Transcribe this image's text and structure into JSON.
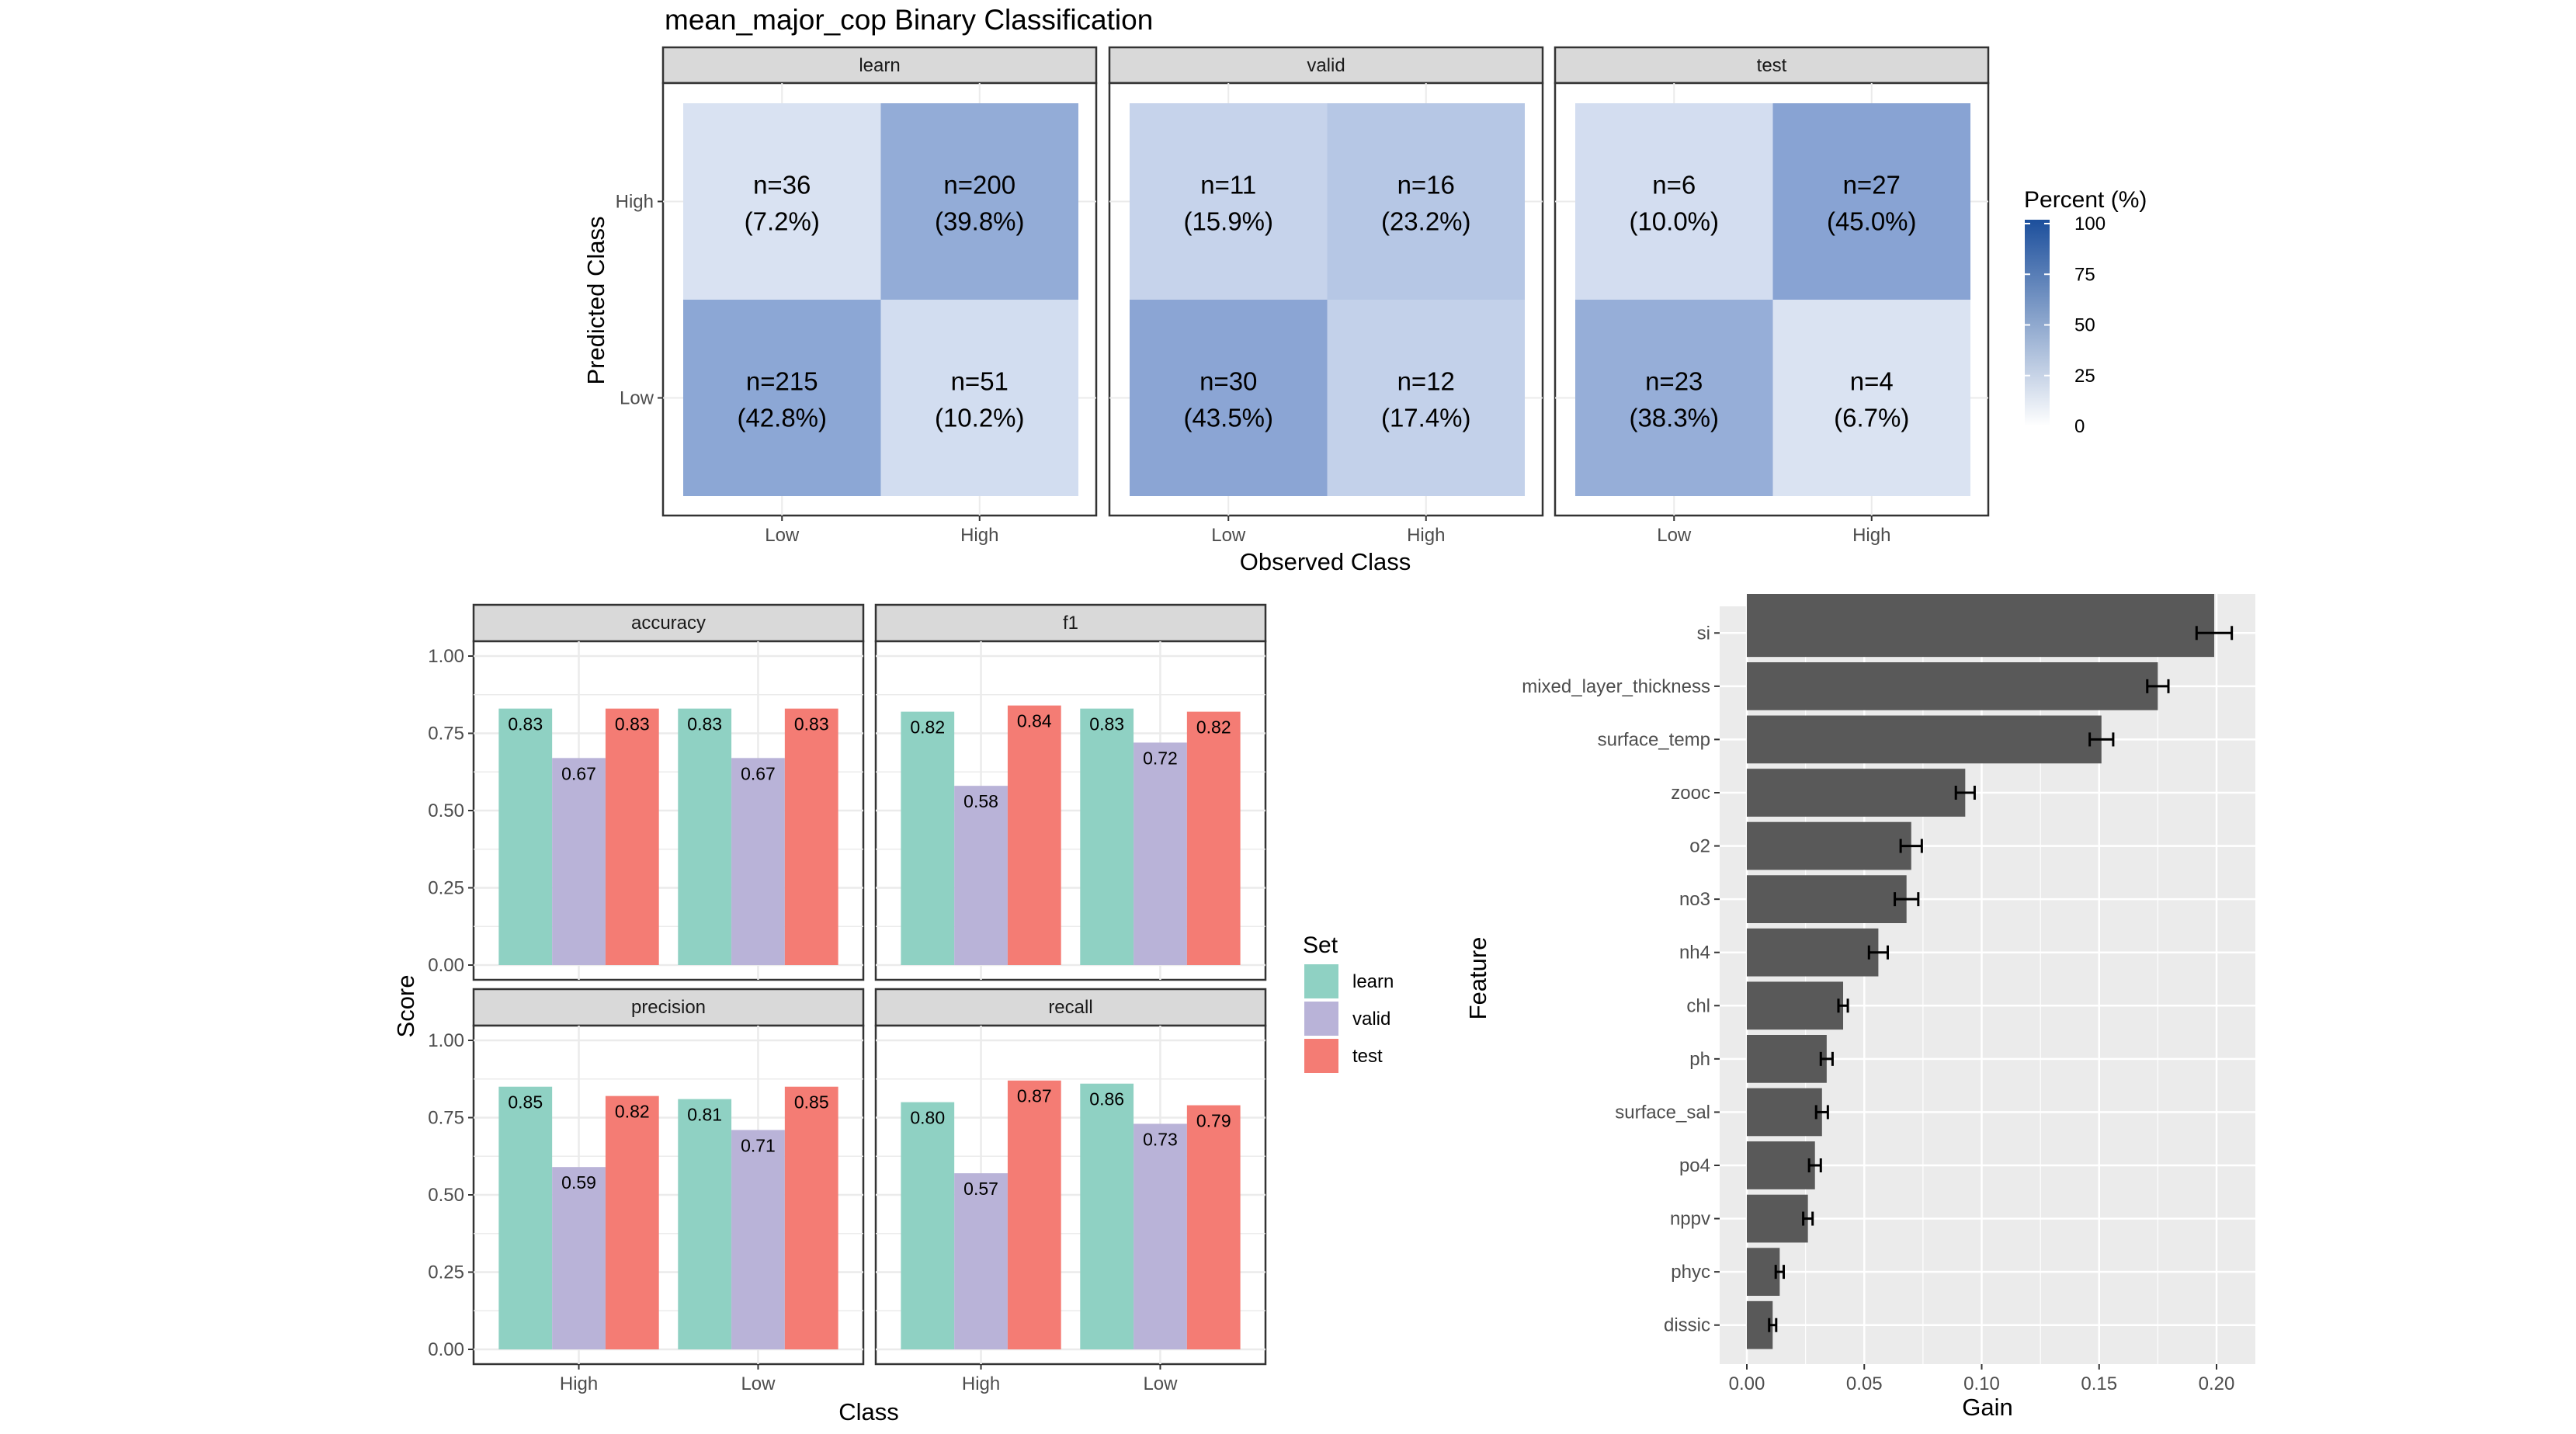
{
  "chart_data": [
    {
      "type": "heatmap",
      "title": "mean_major_cop Binary Classification",
      "xlabel": "Observed Class",
      "ylabel": "Predicted Class",
      "x_categories": [
        "Low",
        "High"
      ],
      "y_categories": [
        "Low",
        "High"
      ],
      "facets": [
        {
          "name": "learn",
          "cells": [
            {
              "observed": "Low",
              "predicted": "High",
              "n": 36,
              "percent": 7.2,
              "label_n": "n=36",
              "label_pct": "(7.2%)"
            },
            {
              "observed": "High",
              "predicted": "High",
              "n": 200,
              "percent": 39.8,
              "label_n": "n=200",
              "label_pct": "(39.8%)"
            },
            {
              "observed": "Low",
              "predicted": "Low",
              "n": 215,
              "percent": 42.8,
              "label_n": "n=215",
              "label_pct": "(42.8%)"
            },
            {
              "observed": "High",
              "predicted": "Low",
              "n": 51,
              "percent": 10.2,
              "label_n": "n=51",
              "label_pct": "(10.2%)"
            }
          ]
        },
        {
          "name": "valid",
          "cells": [
            {
              "observed": "Low",
              "predicted": "High",
              "n": 11,
              "percent": 15.9,
              "label_n": "n=11",
              "label_pct": "(15.9%)"
            },
            {
              "observed": "High",
              "predicted": "High",
              "n": 16,
              "percent": 23.2,
              "label_n": "n=16",
              "label_pct": "(23.2%)"
            },
            {
              "observed": "Low",
              "predicted": "Low",
              "n": 30,
              "percent": 43.5,
              "label_n": "n=30",
              "label_pct": "(43.5%)"
            },
            {
              "observed": "High",
              "predicted": "Low",
              "n": 12,
              "percent": 17.4,
              "label_n": "n=12",
              "label_pct": "(17.4%)"
            }
          ]
        },
        {
          "name": "test",
          "cells": [
            {
              "observed": "Low",
              "predicted": "High",
              "n": 6,
              "percent": 10.0,
              "label_n": "n=6",
              "label_pct": "(10.0%)"
            },
            {
              "observed": "High",
              "predicted": "High",
              "n": 27,
              "percent": 45.0,
              "label_n": "n=27",
              "label_pct": "(45.0%)"
            },
            {
              "observed": "Low",
              "predicted": "Low",
              "n": 23,
              "percent": 38.3,
              "label_n": "n=23",
              "label_pct": "(38.3%)"
            },
            {
              "observed": "High",
              "predicted": "Low",
              "n": 4,
              "percent": 6.7,
              "label_n": "n=4",
              "label_pct": "(6.7%)"
            }
          ]
        }
      ],
      "legend": {
        "title": "Percent (%)",
        "range": [
          0,
          100
        ],
        "ticks": [
          "0",
          "25",
          "50",
          "75",
          "100"
        ],
        "tick_values": [
          0,
          25,
          50,
          75,
          100
        ],
        "color_low": "#ffffff",
        "color_high": "#1c4f9c",
        "placement": "right"
      }
    },
    {
      "type": "bar",
      "xlabel": "Class",
      "ylabel": "Score",
      "categories": [
        "High",
        "Low"
      ],
      "ylim": [
        0,
        1
      ],
      "yticks": [
        "0.00",
        "0.25",
        "0.50",
        "0.75",
        "1.00"
      ],
      "ytick_values": [
        0,
        0.25,
        0.5,
        0.75,
        1.0
      ],
      "grid": true,
      "legend": {
        "title": "Set",
        "placement": "right",
        "entries": [
          {
            "name": "learn",
            "color": "#8fd1c3"
          },
          {
            "name": "valid",
            "color": "#b9b3d8"
          },
          {
            "name": "test",
            "color": "#f47c74"
          }
        ]
      },
      "facets": [
        {
          "name": "accuracy",
          "series": [
            {
              "name": "learn",
              "values": [
                0.83,
                0.83
              ],
              "labels": [
                "0.83",
                "0.83"
              ]
            },
            {
              "name": "valid",
              "values": [
                0.67,
                0.67
              ],
              "labels": [
                "0.67",
                "0.67"
              ]
            },
            {
              "name": "test",
              "values": [
                0.83,
                0.83
              ],
              "labels": [
                "0.83",
                "0.83"
              ]
            }
          ]
        },
        {
          "name": "f1",
          "series": [
            {
              "name": "learn",
              "values": [
                0.82,
                0.83
              ],
              "labels": [
                "0.82",
                "0.83"
              ]
            },
            {
              "name": "valid",
              "values": [
                0.58,
                0.72
              ],
              "labels": [
                "0.58",
                "0.72"
              ]
            },
            {
              "name": "test",
              "values": [
                0.84,
                0.82
              ],
              "labels": [
                "0.84",
                "0.82"
              ]
            }
          ]
        },
        {
          "name": "precision",
          "series": [
            {
              "name": "learn",
              "values": [
                0.85,
                0.81
              ],
              "labels": [
                "0.85",
                "0.81"
              ]
            },
            {
              "name": "valid",
              "values": [
                0.59,
                0.71
              ],
              "labels": [
                "0.59",
                "0.71"
              ]
            },
            {
              "name": "test",
              "values": [
                0.82,
                0.85
              ],
              "labels": [
                "0.82",
                "0.85"
              ]
            }
          ]
        },
        {
          "name": "recall",
          "series": [
            {
              "name": "learn",
              "values": [
                0.8,
                0.86
              ],
              "labels": [
                "0.80",
                "0.86"
              ]
            },
            {
              "name": "valid",
              "values": [
                0.57,
                0.73
              ],
              "labels": [
                "0.57",
                "0.73"
              ]
            },
            {
              "name": "test",
              "values": [
                0.87,
                0.79
              ],
              "labels": [
                "0.87",
                "0.79"
              ]
            }
          ]
        }
      ]
    },
    {
      "type": "bar",
      "orientation": "horizontal",
      "xlabel": "Gain",
      "ylabel": "Feature",
      "xlim": [
        0,
        0.21
      ],
      "xticks": [
        "0.00",
        "0.05",
        "0.10",
        "0.15",
        "0.20"
      ],
      "xtick_values": [
        0,
        0.05,
        0.1,
        0.15,
        0.2
      ],
      "grid": true,
      "bar_color": "#595959",
      "categories": [
        "si",
        "mixed_layer_thickness",
        "surface_temp",
        "zooc",
        "o2",
        "no3",
        "nh4",
        "chl",
        "ph",
        "surface_sal",
        "po4",
        "nppv",
        "phyc",
        "dissic"
      ],
      "values": [
        0.199,
        0.175,
        0.151,
        0.093,
        0.07,
        0.068,
        0.056,
        0.041,
        0.034,
        0.032,
        0.029,
        0.026,
        0.014,
        0.011
      ],
      "error": [
        0.0075,
        0.0045,
        0.005,
        0.004,
        0.0045,
        0.005,
        0.004,
        0.002,
        0.0025,
        0.0025,
        0.0025,
        0.002,
        0.0017,
        0.0015
      ]
    }
  ]
}
